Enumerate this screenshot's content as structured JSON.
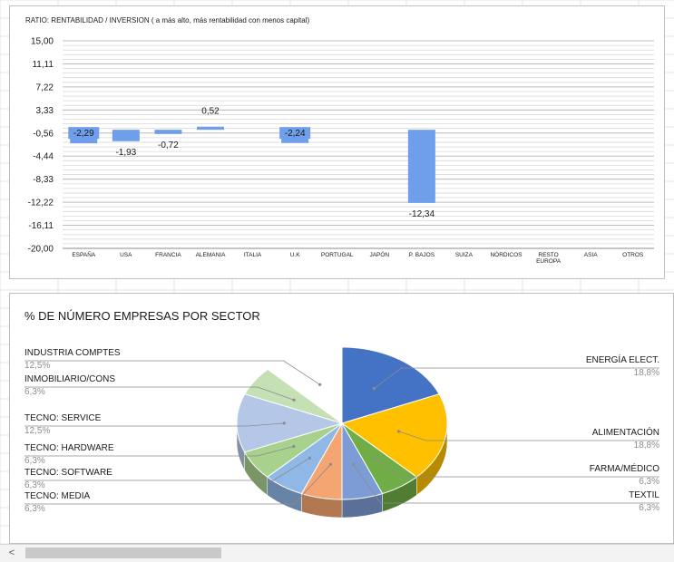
{
  "bar_chart": {
    "chart_data": {
      "type": "bar",
      "title": "RATIO: RENTABILIDAD / INVERSION ( a más alto, más rentabilidad con menos capital)",
      "categories": [
        "ESPAÑA",
        "USA",
        "FRANCIA",
        "ALEMANIA",
        "ITALIA",
        "U.K",
        "PORTUGAL",
        "JAPÓN",
        "P. BAJOS",
        "SUIZA",
        "NÓRDICOS",
        "RESTO EUROPA",
        "ASIA",
        "OTROS"
      ],
      "values": [
        -2.29,
        -1.93,
        -0.72,
        0.52,
        null,
        -2.24,
        null,
        null,
        -12.34,
        null,
        null,
        null,
        null,
        null
      ],
      "data_labels": [
        "-2,29",
        "-1,93",
        "-0,72",
        "0,52",
        "",
        "-2,24",
        "",
        "",
        "-12,34",
        "",
        "",
        "",
        "",
        ""
      ],
      "ylim": [
        -20,
        15
      ],
      "ytick_labels": [
        "15,00",
        "11,11",
        "7,22",
        "3,33",
        "-0,56",
        "-4,44",
        "-8,33",
        "-12,22",
        "-16,11",
        "-20,00"
      ],
      "bar_color": "#6f9fea",
      "label_box_color": "#6f9fea",
      "grid": true
    }
  },
  "pie_chart": {
    "chart_data": {
      "type": "pie",
      "title": "% DE NÚMERO EMPRESAS POR SECTOR",
      "slices": [
        {
          "label": "ENERGÍA ELECT.",
          "pct": "18,8%",
          "value": 18.8,
          "color": "#4472c4",
          "side": "right"
        },
        {
          "label": "ALIMENTACIÓN",
          "pct": "18,8%",
          "value": 18.8,
          "color": "#ffc000",
          "side": "right"
        },
        {
          "label": "FARMA/MÉDICO",
          "pct": "6,3%",
          "value": 6.3,
          "color": "#70ad47",
          "side": "right"
        },
        {
          "label": "TEXTIL",
          "pct": "6,3%",
          "value": 6.3,
          "color": "#7d9bd4",
          "side": "right"
        },
        {
          "label": "TECNO: MEDIA",
          "pct": "6,3%",
          "value": 6.3,
          "color": "#f4a571",
          "side": "left"
        },
        {
          "label": "TECNO: SOFTWARE",
          "pct": "6,3%",
          "value": 6.3,
          "color": "#8fb8e6",
          "side": "left"
        },
        {
          "label": "TECNO: HARDWARE",
          "pct": "6,3%",
          "value": 6.3,
          "color": "#a9d18e",
          "side": "left"
        },
        {
          "label": "TECNO: SERVICE",
          "pct": "12,5%",
          "value": 12.5,
          "color": "#b4c7e7",
          "side": "left"
        },
        {
          "label": "INMOBILIARIO/CONS",
          "pct": "6,3%",
          "value": 6.3,
          "color": "#c5e0b4",
          "side": "left"
        },
        {
          "label": "INDUSTRIA COMPTES",
          "pct": "12,5%",
          "value": 12.5,
          "color": "#ffffff",
          "side": "left"
        }
      ]
    }
  },
  "scrollbar": {
    "left_arrow": "<"
  }
}
